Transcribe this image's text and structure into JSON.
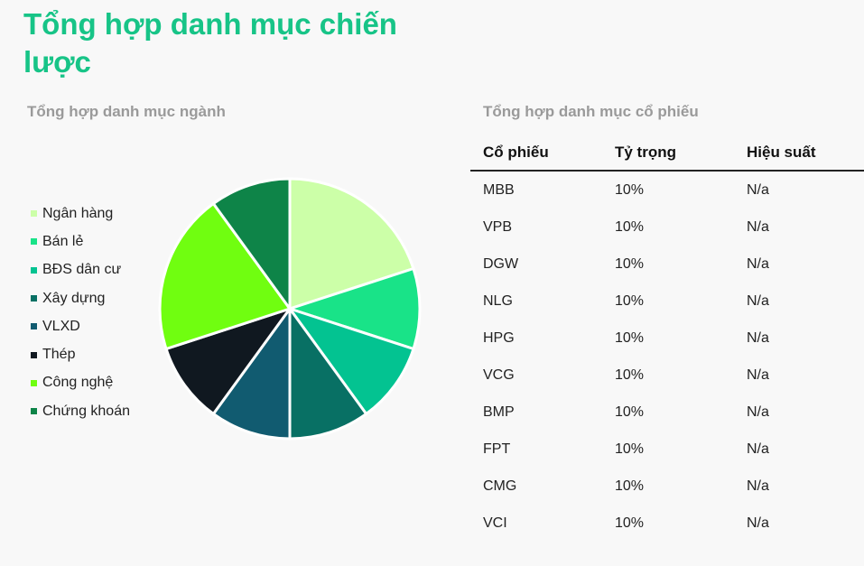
{
  "page": {
    "title": "Tổng hợp danh mục chiến lược"
  },
  "sector_section": {
    "title": "Tổng hợp danh mục ngành"
  },
  "stock_section": {
    "title": "Tổng hợp danh mục cổ phiếu",
    "columns": [
      "Cổ phiếu",
      "Tỷ trọng",
      "Hiệu suất"
    ],
    "rows": [
      {
        "ticker": "MBB",
        "weight": "10%",
        "performance": "N/a"
      },
      {
        "ticker": "VPB",
        "weight": "10%",
        "performance": "N/a"
      },
      {
        "ticker": "DGW",
        "weight": "10%",
        "performance": "N/a"
      },
      {
        "ticker": "NLG",
        "weight": "10%",
        "performance": "N/a"
      },
      {
        "ticker": "HPG",
        "weight": "10%",
        "performance": "N/a"
      },
      {
        "ticker": "VCG",
        "weight": "10%",
        "performance": "N/a"
      },
      {
        "ticker": "BMP",
        "weight": "10%",
        "performance": "N/a"
      },
      {
        "ticker": "FPT",
        "weight": "10%",
        "performance": "N/a"
      },
      {
        "ticker": "CMG",
        "weight": "10%",
        "performance": "N/a"
      },
      {
        "ticker": "VCI",
        "weight": "10%",
        "performance": "N/a"
      }
    ]
  },
  "chart_data": [
    {
      "type": "pie",
      "title": "Tổng hợp danh mục ngành",
      "legend_position": "left",
      "slices": [
        {
          "label": "Ngân hàng",
          "value": 20,
          "color": "#ccffa8"
        },
        {
          "label": "Bán lẻ",
          "value": 10,
          "color": "#19e388"
        },
        {
          "label": "BĐS dân cư",
          "value": 10,
          "color": "#03c391"
        },
        {
          "label": "Xây dựng",
          "value": 10,
          "color": "#087064"
        },
        {
          "label": "VLXD",
          "value": 10,
          "color": "#115b70"
        },
        {
          "label": "Thép",
          "value": 10,
          "color": "#101820"
        },
        {
          "label": "Công nghệ",
          "value": 20,
          "color": "#70fe10"
        },
        {
          "label": "Chứng khoán",
          "value": 10,
          "color": "#0e8448"
        }
      ]
    },
    {
      "type": "table",
      "title": "Tổng hợp danh mục cổ phiếu",
      "columns": [
        "Cổ phiếu",
        "Tỷ trọng",
        "Hiệu suất"
      ],
      "rows": [
        [
          "MBB",
          "10%",
          "N/a"
        ],
        [
          "VPB",
          "10%",
          "N/a"
        ],
        [
          "DGW",
          "10%",
          "N/a"
        ],
        [
          "NLG",
          "10%",
          "N/a"
        ],
        [
          "HPG",
          "10%",
          "N/a"
        ],
        [
          "VCG",
          "10%",
          "N/a"
        ],
        [
          "BMP",
          "10%",
          "N/a"
        ],
        [
          "FPT",
          "10%",
          "N/a"
        ],
        [
          "CMG",
          "10%",
          "N/a"
        ],
        [
          "VCI",
          "10%",
          "N/a"
        ]
      ]
    }
  ]
}
